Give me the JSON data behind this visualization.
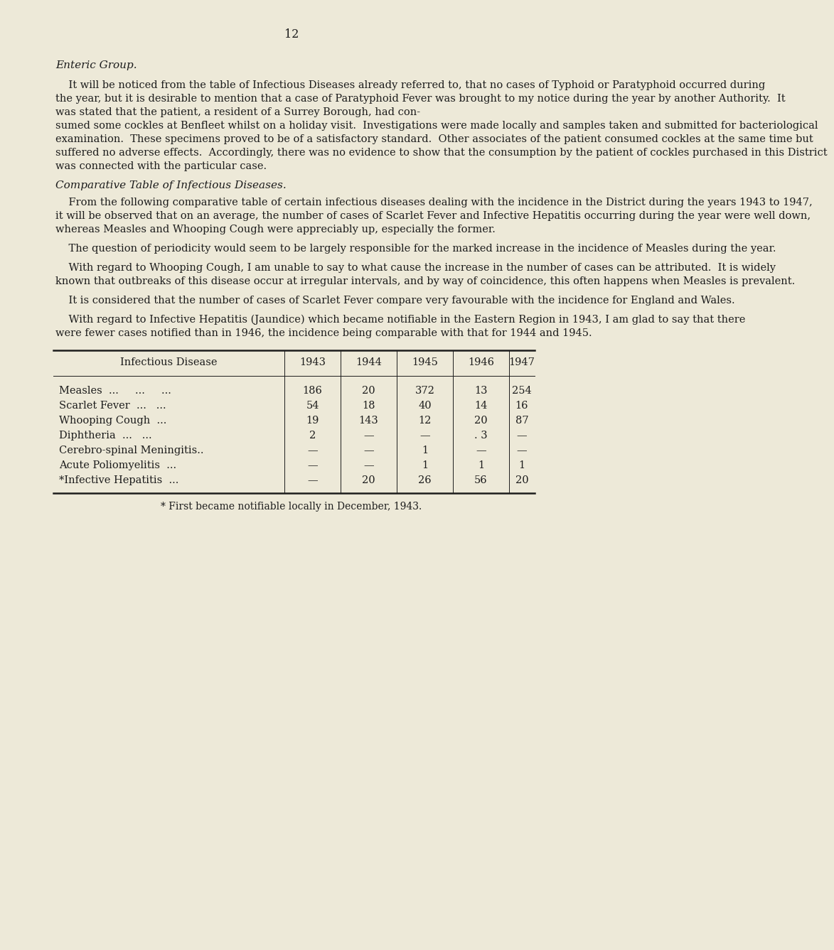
{
  "page_number": "12",
  "background_color": "#ede9d8",
  "text_color": "#1c1c1c",
  "section_heading": "Enteric Group.",
  "subheading": "Comparative Table of Infectious Diseases.",
  "para1_lines": [
    "    It will be noticed from the table of Infectious Diseases already referred to, that no cases of Typhoid or Paratyphoid occurred during",
    "the year, but it is desirable to mention that a case of Paratyphoid Fever was brought to my notice during the year by another Authority.  It",
    "was stated that the patient, a resident of a Surrey Borough, had con-",
    "sumed some cockles at Benfleet whilst on a holiday visit.  Investigations were made locally and samples taken and submitted for bacteriological",
    "examination.  These specimens proved to be of a satisfactory standard.  Other associates of the patient consumed cockles at the same time but",
    "suffered no adverse effects.  Accordingly, there was no evidence to show that the consumption by the patient of cockles purchased in this District",
    "was connected with the particular case."
  ],
  "para2_lines": [
    "    From the following comparative table of certain infectious diseases dealing with the incidence in the District during the years 1943 to 1947,",
    "it will be observed that on an average, the number of cases of Scarlet Fever and Infective Hepatitis occurring during the year were well down,",
    "whereas Measles and Whooping Cough were appreciably up, especially the former."
  ],
  "para3_lines": [
    "    The question of periodicity would seem to be largely responsible for the marked increase in the incidence of Measles during the year."
  ],
  "para4_lines": [
    "    With regard to Whooping Cough, I am unable to say to what cause the increase in the number of cases can be attributed.  It is widely",
    "known that outbreaks of this disease occur at irregular intervals, and by way of coincidence, this often happens when Measles is prevalent."
  ],
  "para5_lines": [
    "    It is considered that the number of cases of Scarlet Fever compare very favourable with the incidence for England and Wales."
  ],
  "para6_lines": [
    "    With regard to Infective Hepatitis (Jaundice) which became notifiable in the Eastern Region in 1943, I am glad to say that there",
    "were fewer cases notified than in 1946, the incidence being comparable with that for 1944 and 1945."
  ],
  "table_headers": [
    "Infectious Disease",
    "1943",
    "1944",
    "1945",
    "1946",
    "1947"
  ],
  "table_rows": [
    [
      "Measles  ...     ...     ...",
      "186",
      "20",
      "372",
      "13",
      "254"
    ],
    [
      "Scarlet Fever  ...   ...",
      "54",
      "18",
      "40",
      "14",
      "16"
    ],
    [
      "Whooping Cough  ...",
      "19",
      "143",
      "12",
      "20",
      "87"
    ],
    [
      "Diphtheria  ...   ...",
      "2",
      "—",
      "—",
      ". 3",
      "—"
    ],
    [
      "Cerebro-spinal Meningitis..",
      "—",
      "—",
      "1",
      "—",
      "—"
    ],
    [
      "Acute Poliomyelitis  ...",
      "—",
      "—",
      "1",
      "1",
      "1"
    ],
    [
      "*Infective Hepatitis  ...",
      "—",
      "20",
      "26",
      "56",
      "20"
    ]
  ],
  "table_footnote": "* First became notifiable locally in December, 1943.",
  "body_fontsize": 10.5,
  "heading_fontsize": 11.0,
  "pagenum_fontsize": 11.5,
  "table_fontsize": 10.5,
  "line_thick": 1.8,
  "line_thin": 0.7
}
